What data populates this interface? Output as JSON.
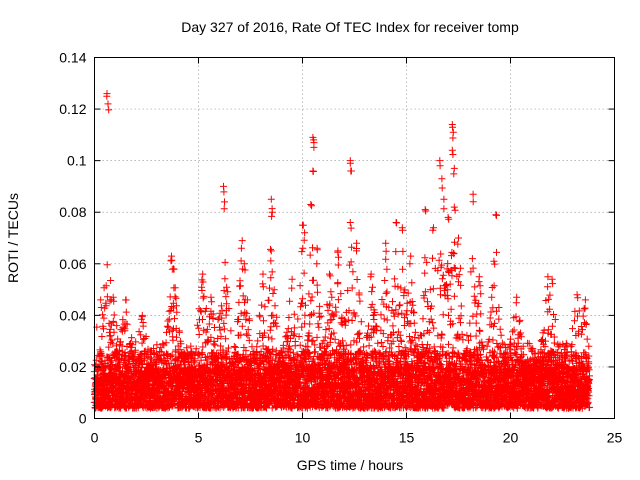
{
  "chart_data": {
    "type": "scatter",
    "title": "Day 327 of 2016, Rate Of TEC Index for receiver tomp",
    "xlabel": "GPS time / hours",
    "ylabel": "ROTI / TECUs",
    "xlim": [
      0,
      25
    ],
    "ylim": [
      0,
      0.14
    ],
    "xticks": [
      0,
      5,
      10,
      15,
      20,
      25
    ],
    "xtick_labels": [
      "0",
      "5",
      "10",
      "15",
      "20",
      "25"
    ],
    "yticks": [
      0,
      0.02,
      0.04,
      0.06,
      0.08,
      0.1,
      0.12,
      0.14
    ],
    "ytick_labels": [
      "0",
      "0.02",
      "0.04",
      "0.06",
      "0.08",
      "0.1",
      "0.12",
      "0.14"
    ],
    "grid": true,
    "marker": "plus",
    "series": [
      {
        "name": "ROTI",
        "color": "#ff0000",
        "x_range": [
          0,
          23.8
        ],
        "dense_band": [
          0.004,
          0.045
        ],
        "peaks": [
          {
            "x": 0.3,
            "y": 0.046
          },
          {
            "x": 0.6,
            "y": 0.126
          },
          {
            "x": 0.65,
            "y": 0.122
          },
          {
            "x": 0.9,
            "y": 0.047
          },
          {
            "x": 1.5,
            "y": 0.046
          },
          {
            "x": 2.3,
            "y": 0.04
          },
          {
            "x": 3.7,
            "y": 0.063
          },
          {
            "x": 3.8,
            "y": 0.058
          },
          {
            "x": 5.2,
            "y": 0.056
          },
          {
            "x": 5.6,
            "y": 0.047
          },
          {
            "x": 6.2,
            "y": 0.09
          },
          {
            "x": 6.25,
            "y": 0.084
          },
          {
            "x": 7.1,
            "y": 0.069
          },
          {
            "x": 7.2,
            "y": 0.06
          },
          {
            "x": 8.1,
            "y": 0.056
          },
          {
            "x": 8.5,
            "y": 0.085
          },
          {
            "x": 8.55,
            "y": 0.08
          },
          {
            "x": 8.5,
            "y": 0.065
          },
          {
            "x": 9.5,
            "y": 0.054
          },
          {
            "x": 10.0,
            "y": 0.075
          },
          {
            "x": 10.1,
            "y": 0.072
          },
          {
            "x": 10.4,
            "y": 0.083
          },
          {
            "x": 10.5,
            "y": 0.109
          },
          {
            "x": 10.55,
            "y": 0.107
          },
          {
            "x": 10.5,
            "y": 0.096
          },
          {
            "x": 10.7,
            "y": 0.066
          },
          {
            "x": 11.3,
            "y": 0.056
          },
          {
            "x": 11.7,
            "y": 0.065
          },
          {
            "x": 12.3,
            "y": 0.1
          },
          {
            "x": 12.35,
            "y": 0.096
          },
          {
            "x": 12.3,
            "y": 0.076
          },
          {
            "x": 12.6,
            "y": 0.068
          },
          {
            "x": 13.3,
            "y": 0.056
          },
          {
            "x": 14.0,
            "y": 0.068
          },
          {
            "x": 14.5,
            "y": 0.076
          },
          {
            "x": 14.8,
            "y": 0.074
          },
          {
            "x": 15.2,
            "y": 0.063
          },
          {
            "x": 15.9,
            "y": 0.081
          },
          {
            "x": 16.3,
            "y": 0.074
          },
          {
            "x": 16.6,
            "y": 0.1
          },
          {
            "x": 16.7,
            "y": 0.093
          },
          {
            "x": 16.8,
            "y": 0.085
          },
          {
            "x": 17.0,
            "y": 0.078
          },
          {
            "x": 17.2,
            "y": 0.114
          },
          {
            "x": 17.25,
            "y": 0.111
          },
          {
            "x": 17.2,
            "y": 0.104
          },
          {
            "x": 17.3,
            "y": 0.097
          },
          {
            "x": 17.3,
            "y": 0.082
          },
          {
            "x": 17.5,
            "y": 0.07
          },
          {
            "x": 18.2,
            "y": 0.087
          },
          {
            "x": 18.5,
            "y": 0.055
          },
          {
            "x": 19.2,
            "y": 0.061
          },
          {
            "x": 19.3,
            "y": 0.079
          },
          {
            "x": 20.3,
            "y": 0.047
          },
          {
            "x": 21.8,
            "y": 0.055
          },
          {
            "x": 22.0,
            "y": 0.054
          },
          {
            "x": 23.2,
            "y": 0.048
          },
          {
            "x": 23.6,
            "y": 0.046
          }
        ]
      }
    ]
  }
}
